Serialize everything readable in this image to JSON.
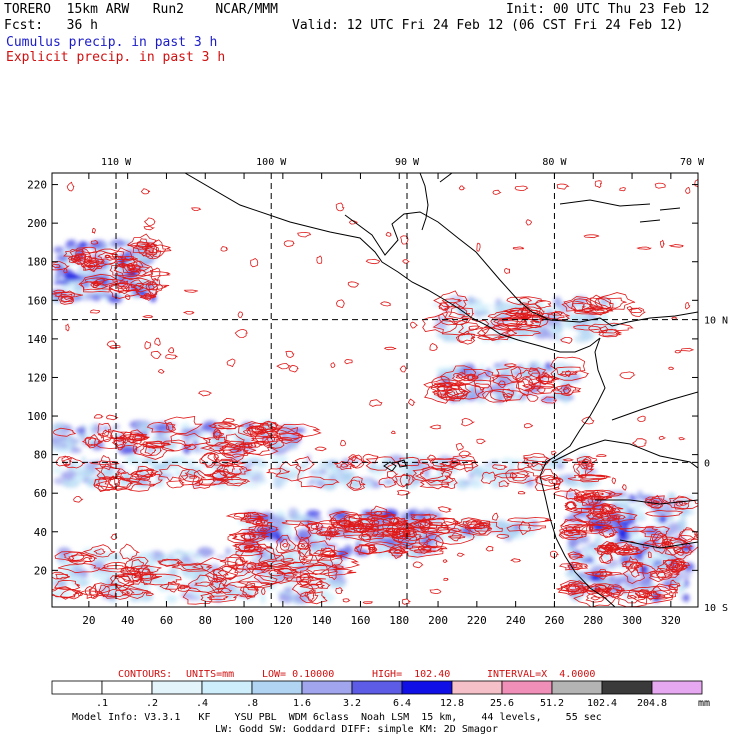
{
  "header": {
    "left_line1": "TORERO  15km ARW   Run2    NCAR/MMM",
    "left_line2": "Fcst:   36 h",
    "right_line1": "Init: 00 UTC Thu 23 Feb 12",
    "right_line2": "Valid: 12 UTC Fri 24 Feb 12 (06 CST Fri 24 Feb 12)",
    "field1": "Cumulus precip. in past 3 h",
    "field2": "Explicit precip. in past 3 h"
  },
  "colors": {
    "field1": "#1c1cc8",
    "field2": "#d01010",
    "contour": "#e01818",
    "map": "#000000"
  },
  "chart_data": {
    "type": "heatmap",
    "title": "Cumulus precip. in past 3 h (shaded), Explicit precip. in past 3 h (contours)",
    "x_ticks": [
      20,
      40,
      60,
      80,
      100,
      120,
      140,
      160,
      180,
      200,
      220,
      240,
      260,
      280,
      300,
      320
    ],
    "y_ticks": [
      20,
      40,
      60,
      80,
      100,
      120,
      140,
      160,
      180,
      200,
      220
    ],
    "xlim": [
      1,
      334
    ],
    "ylim": [
      1,
      226
    ],
    "longitude_labels": [
      "110 W",
      "100 W",
      "90 W",
      "80 W",
      "70 W"
    ],
    "longitude_lines_at_x": [
      34,
      114,
      184,
      260
    ],
    "latitude_labels": [
      "10 N",
      "0",
      "10 S"
    ],
    "latitude_lines_at_y": [
      150,
      76
    ],
    "latitude_label_at_y": [
      150,
      76,
      1
    ],
    "contour_info": {
      "label": "CONTOURS:",
      "units": "UNITS=mm",
      "low": "LOW= 0.10000",
      "high": "HIGH=  102.40",
      "interval": "INTERVAL=X  4.0000"
    },
    "colorbar": {
      "unit": "mm",
      "labels": [
        ".1",
        ".2",
        ".4",
        ".8",
        "1.6",
        "3.2",
        "6.4",
        "12.8",
        "25.6",
        "51.2",
        "102.4",
        "204.8"
      ],
      "colors": [
        "#ffffff",
        "#ffffff",
        "#e3f4fb",
        "#cfeefc",
        "#b0d4f2",
        "#a0a5ee",
        "#5c5ce6",
        "#1010e6",
        "#f5c0c8",
        "#f090b8",
        "#b4b4b4",
        "#3a3a3a",
        "#e6a8f0"
      ]
    },
    "precip_bands": [
      {
        "x": [
          3,
          55
        ],
        "y": [
          160,
          190
        ],
        "intensity": 3
      },
      {
        "x": [
          3,
          130
        ],
        "y": [
          82,
          96
        ],
        "intensity": 2
      },
      {
        "x": [
          100,
          200
        ],
        "y": [
          28,
          50
        ],
        "intensity": 3
      },
      {
        "x": [
          150,
          250
        ],
        "y": [
          36,
          46
        ],
        "intensity": 2
      },
      {
        "x": [
          3,
          280
        ],
        "y": [
          64,
          78
        ],
        "intensity": 1
      },
      {
        "x": [
          200,
          270
        ],
        "y": [
          108,
          126
        ],
        "intensity": 2
      },
      {
        "x": [
          268,
          330
        ],
        "y": [
          5,
          60
        ],
        "intensity": 3
      },
      {
        "x": [
          3,
          150
        ],
        "y": [
          5,
          30
        ],
        "intensity": 1
      },
      {
        "x": [
          200,
          290
        ],
        "y": [
          140,
          160
        ],
        "intensity": 1
      }
    ]
  },
  "footer": {
    "line1": "Model Info: V3.3.1   KF    YSU PBL  WDM 6class  Noah LSM  15 km,    44 levels,    55 sec",
    "line2": "LW: Godd SW: Goddard DIFF: simple KM: 2D Smagor"
  }
}
